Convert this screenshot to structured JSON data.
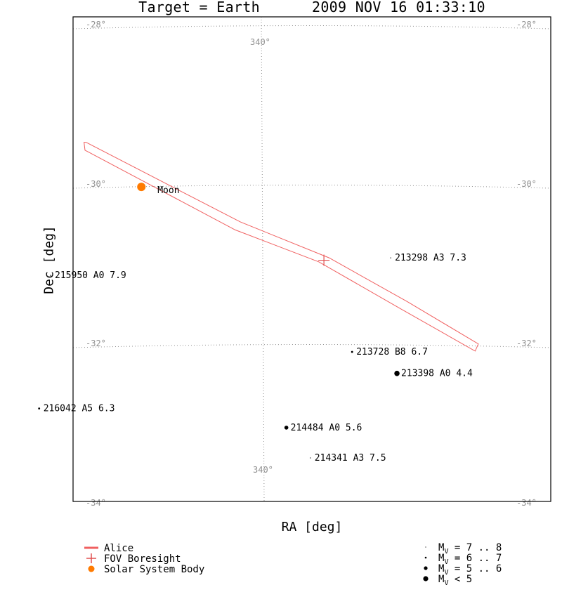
{
  "header": {
    "target": "Target = Earth",
    "datetime": "2009 NOV 16 01:33:10"
  },
  "chart_data": {
    "type": "scatter",
    "title": "Target = Earth      2009 NOV 16 01:33:10",
    "xlabel": "RA [deg]",
    "ylabel": "Dec [deg]",
    "grid": true,
    "dec_grid": [
      {
        "dec": -28,
        "label": "-28°"
      },
      {
        "dec": -30,
        "label": "-30°"
      },
      {
        "dec": -32,
        "label": "-32°"
      },
      {
        "dec": -34,
        "label": "-34°"
      }
    ],
    "ra_grid": [
      {
        "ra": 340,
        "label": "340°"
      }
    ],
    "stars": [
      {
        "id": "213298",
        "spectral": "A3",
        "mag": 7.3,
        "ra": 338.76,
        "dec": -30.9
      },
      {
        "id": "215950",
        "spectral": "A0",
        "mag": 7.9,
        "ra": 342.02,
        "dec": -31.12
      },
      {
        "id": "213728",
        "spectral": "B8",
        "mag": 6.7,
        "ra": 339.13,
        "dec": -32.08
      },
      {
        "id": "213398",
        "spectral": "A0",
        "mag": 4.4,
        "ra": 338.7,
        "dec": -32.35
      },
      {
        "id": "216042",
        "spectral": "A5",
        "mag": 6.3,
        "ra": 342.13,
        "dec": -32.79
      },
      {
        "id": "214484",
        "spectral": "A0",
        "mag": 5.6,
        "ra": 339.76,
        "dec": -33.03
      },
      {
        "id": "214341",
        "spectral": "A3",
        "mag": 7.5,
        "ra": 339.53,
        "dec": -33.41
      }
    ],
    "bodies": [
      {
        "name": "Moon",
        "ra": 341.15,
        "dec": -30.01
      }
    ],
    "boresight": {
      "ra": 339.4,
      "dec": -30.93
    },
    "fov_outline": [
      [
        341.7,
        -29.45
      ],
      [
        341.69,
        -29.55
      ],
      [
        340.25,
        -30.55
      ],
      [
        339.45,
        -30.95
      ],
      [
        338.65,
        -31.55
      ],
      [
        337.95,
        -32.07
      ],
      [
        337.92,
        -31.98
      ],
      [
        338.6,
        -31.45
      ],
      [
        339.35,
        -30.9
      ],
      [
        340.2,
        -30.45
      ],
      [
        341.68,
        -29.45
      ]
    ],
    "legend": [
      {
        "label": "Alice",
        "symbol": "line"
      },
      {
        "label": "FOV Boresight",
        "symbol": "cross"
      },
      {
        "label": "Solar System Body",
        "symbol": "dot"
      }
    ],
    "magnitude_legend": [
      {
        "range": "= 7 .. 8",
        "radius": 0.6
      },
      {
        "range": "= 6 .. 7",
        "radius": 1.3
      },
      {
        "range": "= 5 .. 6",
        "radius": 2.6
      },
      {
        "range": "< 5",
        "radius": 3.6
      }
    ],
    "magnitude_symbol": "M",
    "magnitude_subscript": "V"
  },
  "colors": {
    "fov": "#f06060",
    "boresight": "#e05050",
    "body": "#ff7a00",
    "grid": "#909090",
    "frame": "#000000"
  }
}
